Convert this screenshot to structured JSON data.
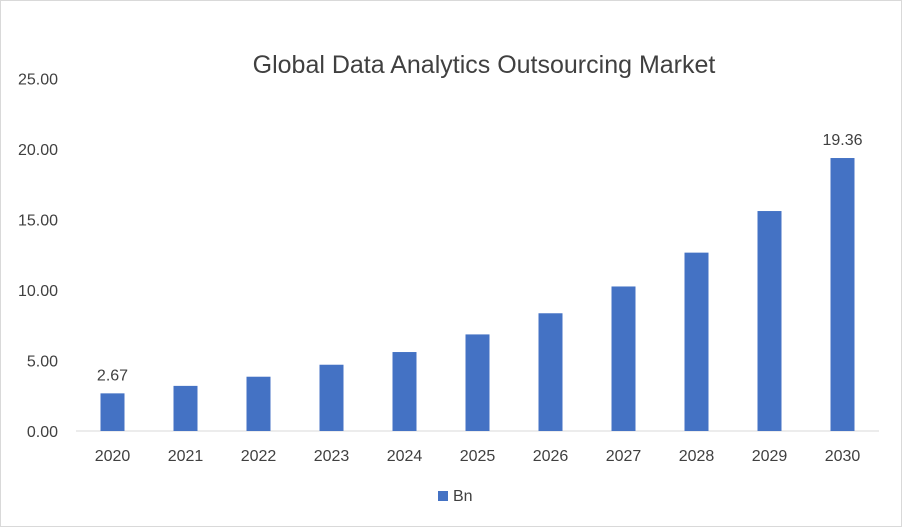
{
  "chart_data": {
    "type": "bar",
    "title": "Global Data Analytics Outsourcing Market",
    "categories": [
      "2020",
      "2021",
      "2022",
      "2023",
      "2024",
      "2025",
      "2026",
      "2027",
      "2028",
      "2029",
      "2030"
    ],
    "series": [
      {
        "name": "Bn",
        "color": "#4472c4",
        "values": [
          2.67,
          3.2,
          3.85,
          4.7,
          5.6,
          6.85,
          8.35,
          10.25,
          12.65,
          15.6,
          19.36
        ]
      }
    ],
    "y_ticks": [
      "0.00",
      "5.00",
      "10.00",
      "15.00",
      "20.00",
      "25.00"
    ],
    "ylim": [
      0,
      25
    ],
    "data_labels": [
      {
        "category": "2020",
        "text": "2.67"
      },
      {
        "category": "2030",
        "text": "19.36"
      }
    ],
    "grid": false,
    "legend_position": "bottom"
  }
}
